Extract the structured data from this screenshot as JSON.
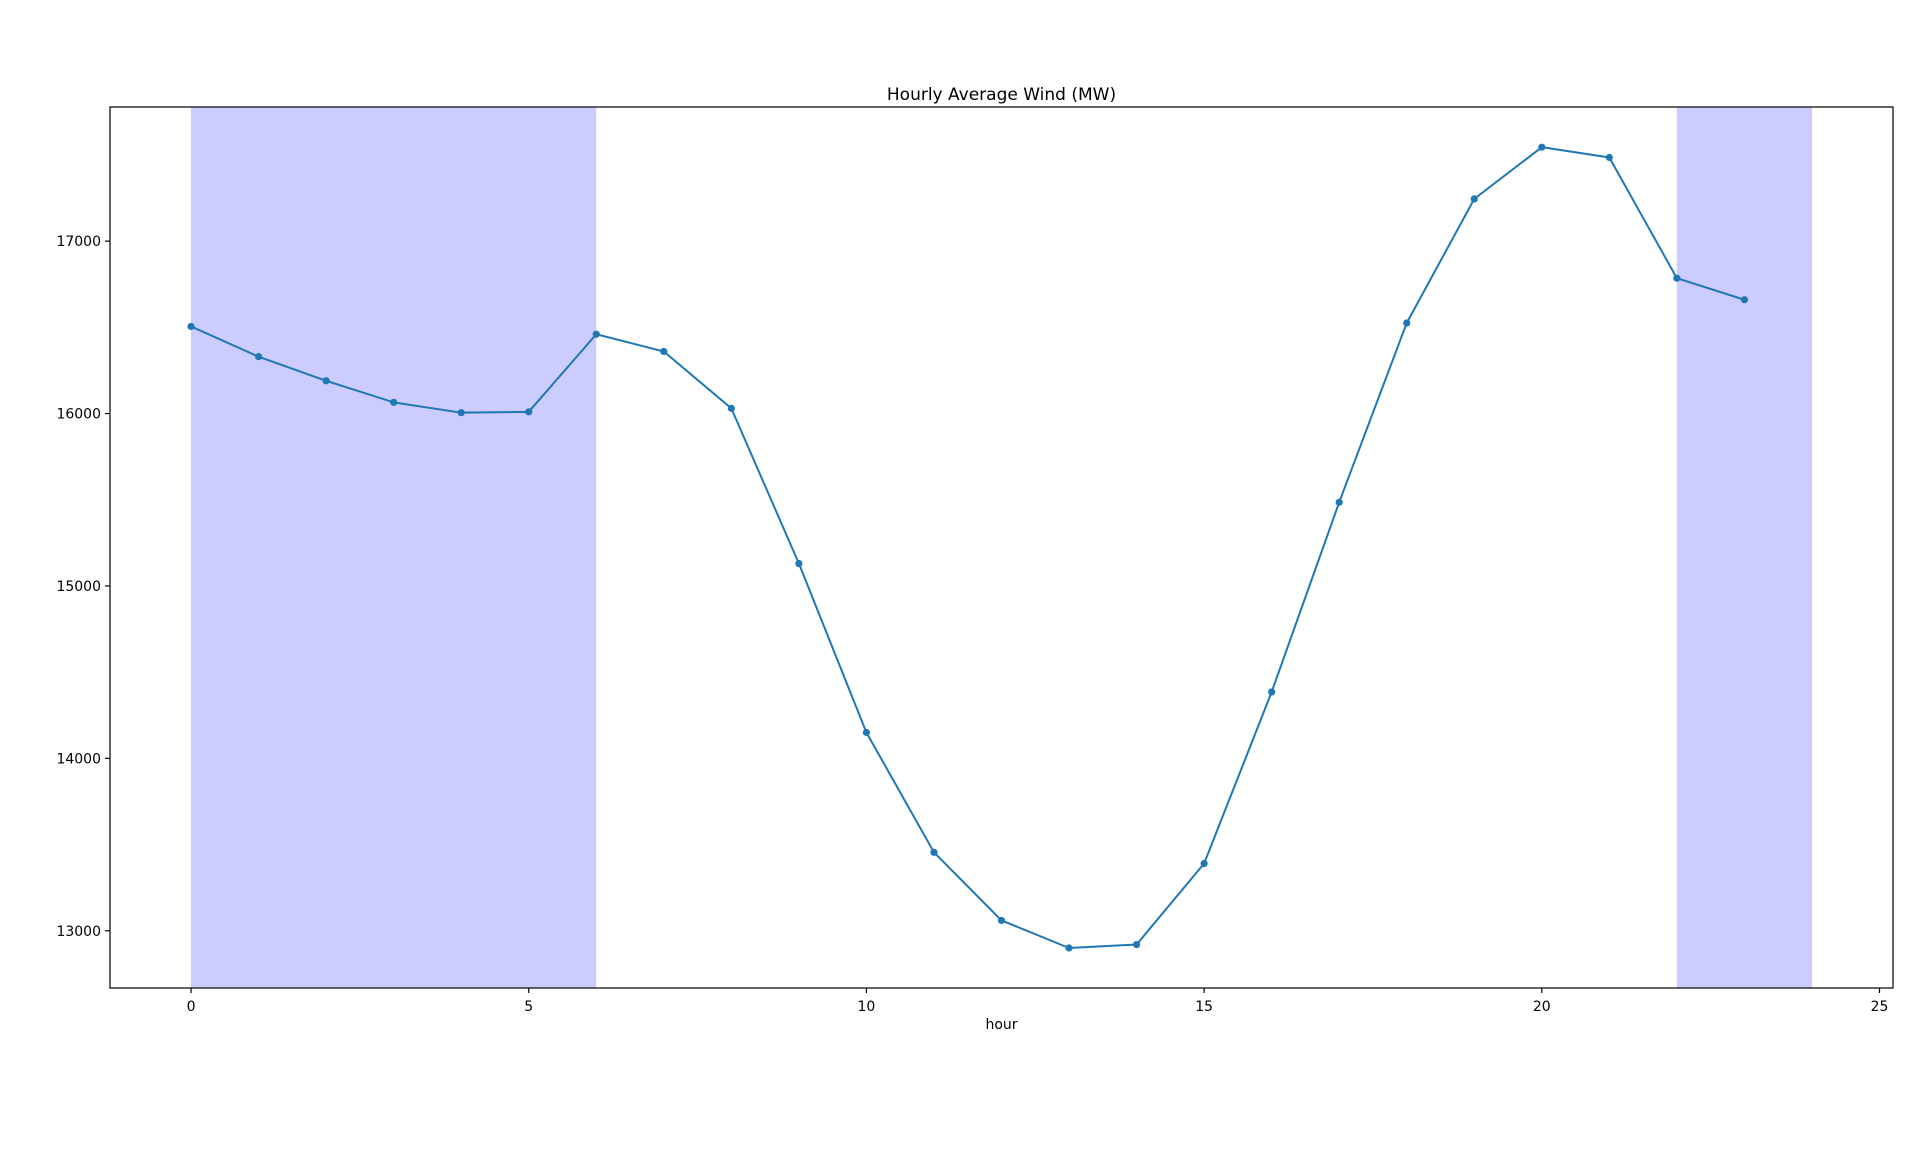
{
  "chart_data": {
    "type": "line",
    "title": "Hourly Average Wind (MW)",
    "xlabel": "hour",
    "ylabel": "",
    "series": [
      {
        "name": "hourly-average-wind",
        "x": [
          0,
          1,
          2,
          3,
          4,
          5,
          6,
          7,
          8,
          9,
          10,
          11,
          12,
          13,
          14,
          15,
          16,
          17,
          18,
          19,
          20,
          21,
          22,
          23
        ],
        "y": [
          16505,
          16330,
          16190,
          16065,
          16005,
          16010,
          16460,
          16360,
          16030,
          15130,
          14150,
          13455,
          13060,
          12900,
          12920,
          13390,
          14385,
          15485,
          16525,
          17245,
          17545,
          17485,
          16785,
          16660
        ],
        "line_color": "#1f77b4",
        "marker": "circle"
      }
    ],
    "x_ticks": [
      0,
      5,
      10,
      15,
      20,
      25
    ],
    "y_ticks": [
      13000,
      14000,
      15000,
      16000,
      17000
    ],
    "xlim": [
      -1.2,
      25.2
    ],
    "ylim": [
      12668,
      17778
    ],
    "grid": false,
    "legend": "none",
    "shaded_bands": [
      {
        "x_start": 0,
        "x_end": 6,
        "color": "#ccccff"
      },
      {
        "x_start": 22,
        "x_end": 24,
        "color": "#ccccff"
      }
    ],
    "background_color": "#ffffff",
    "spine_color": "#000000"
  }
}
